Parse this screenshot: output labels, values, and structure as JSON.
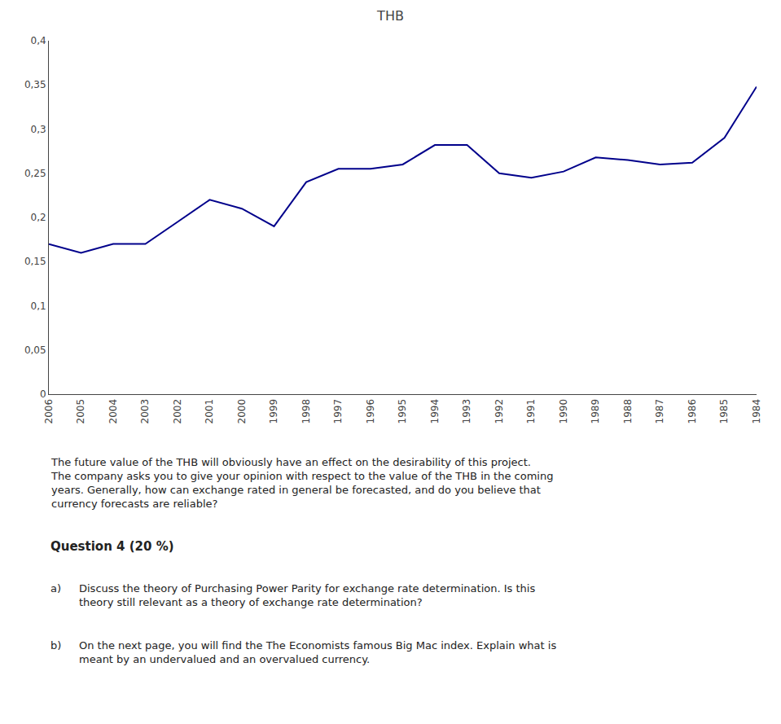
{
  "chart_data": {
    "type": "line",
    "title": "THB",
    "categories": [
      "2006",
      "2005",
      "2004",
      "2003",
      "2002",
      "2001",
      "2000",
      "1999",
      "1998",
      "1997",
      "1996",
      "1995",
      "1994",
      "1993",
      "1992",
      "1991",
      "1990",
      "1989",
      "1988",
      "1987",
      "1986",
      "1985",
      "1984"
    ],
    "values": [
      0.17,
      0.16,
      0.17,
      0.17,
      0.195,
      0.22,
      0.21,
      0.19,
      0.24,
      0.255,
      0.255,
      0.26,
      0.282,
      0.282,
      0.25,
      0.245,
      0.252,
      0.268,
      0.265,
      0.26,
      0.262,
      0.29,
      0.348
    ],
    "color": "#00008B",
    "ylim": [
      0,
      0.4
    ],
    "yticks": [
      0,
      {
        "value": 0.05,
        "label": "0,05"
      },
      {
        "value": 0.1,
        "label": "0,1"
      },
      {
        "value": 0.15,
        "label": "0,15"
      },
      {
        "value": 0.2,
        "label": "0,2"
      },
      {
        "value": 0.25,
        "label": "0,25"
      },
      {
        "value": 0.3,
        "label": "0,3"
      },
      {
        "value": 0.35,
        "label": "0,35"
      },
      {
        "value": 0.4,
        "label": "0,4"
      }
    ],
    "grid": false,
    "annotations": [
      "The future value of the THB will obviously have an effect on the desirability of this project. The company asks you to give your opinion with respect to the value of the THB in the coming years. Generally, how can exchange rated in general be forecasted, and do you believe that currency forecasts are reliable?",
      "Question 4 (20 %)",
      "a)",
      "Discuss the theory of Purchasing Power Parity for exchange rate determination. Is this theory still relevant as a theory of exchange rate determination?",
      "b)",
      "On the next page, you will find the The Economists famous Big Mac index. Explain what is meant by an undervalued and an overvalued currency."
    ]
  }
}
